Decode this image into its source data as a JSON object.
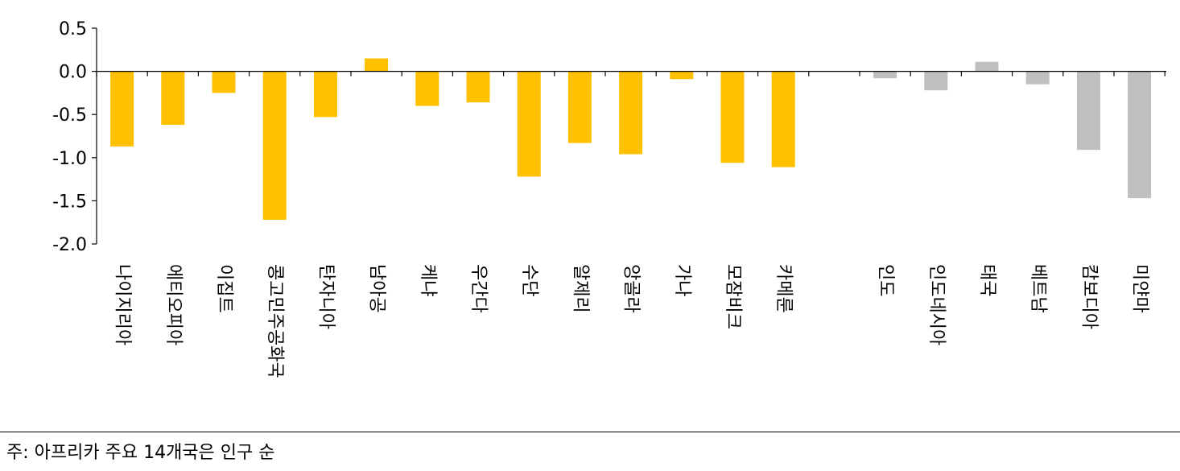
{
  "chart_data": {
    "type": "bar",
    "ylim": [
      -2.0,
      0.5
    ],
    "yticks": [
      "0.5",
      "0.0",
      "-0.5",
      "-1.0",
      "-1.5",
      "-2.0"
    ],
    "ytick_values": [
      0.5,
      0.0,
      -0.5,
      -1.0,
      -1.5,
      -2.0
    ],
    "series": [
      {
        "group": "africa",
        "color": "#FFC000",
        "categories": [
          "나이지리아",
          "에티오피아",
          "이집트",
          "콩고민주공화국",
          "탄자니아",
          "남아공",
          "케냐",
          "우간다",
          "수단",
          "알제리",
          "앙골라",
          "가나",
          "모잠비크",
          "카메룬"
        ],
        "values": [
          -0.87,
          -0.62,
          -0.25,
          -1.72,
          -0.53,
          0.15,
          -0.4,
          -0.36,
          -1.22,
          -0.83,
          -0.96,
          -0.09,
          -1.06,
          -1.11
        ]
      },
      {
        "group": "asia",
        "color": "#BFBFBF",
        "categories": [
          "인도",
          "인도네시아",
          "태국",
          "베트남",
          "캄보디아",
          "미얀마"
        ],
        "values": [
          -0.08,
          -0.22,
          0.11,
          -0.15,
          -0.91,
          -1.47
        ]
      }
    ]
  },
  "footnote": "주: 아프리카 주요 14개국은 인구 순"
}
